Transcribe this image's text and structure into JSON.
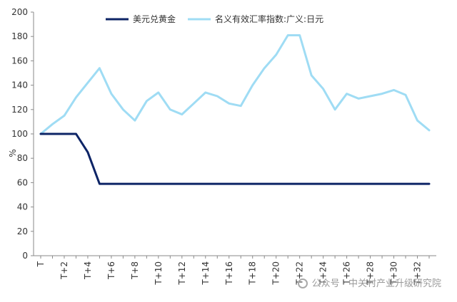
{
  "chart_data": {
    "type": "line",
    "ylabel": "%",
    "xlabel": "",
    "ylim": [
      0,
      200
    ],
    "yticks": [
      0,
      20,
      40,
      60,
      80,
      100,
      120,
      140,
      160,
      180,
      200
    ],
    "x": [
      "T",
      "T+1",
      "T+2",
      "T+3",
      "T+4",
      "T+5",
      "T+6",
      "T+7",
      "T+8",
      "T+9",
      "T+10",
      "T+11",
      "T+12",
      "T+13",
      "T+14",
      "T+15",
      "T+16",
      "T+17",
      "T+18",
      "T+19",
      "T+20",
      "T+21",
      "T+22",
      "T+23",
      "T+24",
      "T+25",
      "T+26",
      "T+27",
      "T+28",
      "T+29",
      "T+30",
      "T+31",
      "T+32",
      "T+33"
    ],
    "xtick_labels": [
      "T",
      "T+2",
      "T+4",
      "T+6",
      "T+8",
      "T+10",
      "T+12",
      "T+14",
      "T+16",
      "T+18",
      "T+20",
      "T+22",
      "T+24",
      "T+26",
      "T+28",
      "T+30",
      "T+32"
    ],
    "grid": false,
    "legend_position": "top",
    "series": [
      {
        "name": "美元兑黄金",
        "color": "#0d2466",
        "values": [
          100,
          100,
          100,
          100,
          85,
          59,
          59,
          59,
          59,
          59,
          59,
          59,
          59,
          59,
          59,
          59,
          59,
          59,
          59,
          59,
          59,
          59,
          59,
          59,
          59,
          59,
          59,
          59,
          59,
          59,
          59,
          59,
          59,
          59
        ]
      },
      {
        "name": "名义有效汇率指数:广义:日元",
        "color": "#9fdcf4",
        "values": [
          100,
          108,
          115,
          130,
          142,
          154,
          133,
          120,
          111,
          127,
          134,
          120,
          116,
          125,
          134,
          131,
          125,
          123,
          140,
          154,
          165,
          181,
          181,
          148,
          137,
          120,
          133,
          129,
          131,
          133,
          136,
          132,
          111,
          103
        ]
      }
    ]
  },
  "watermark": {
    "text": "公众号 · 中关村产业升级研究院",
    "icon": "wechat-icon"
  }
}
